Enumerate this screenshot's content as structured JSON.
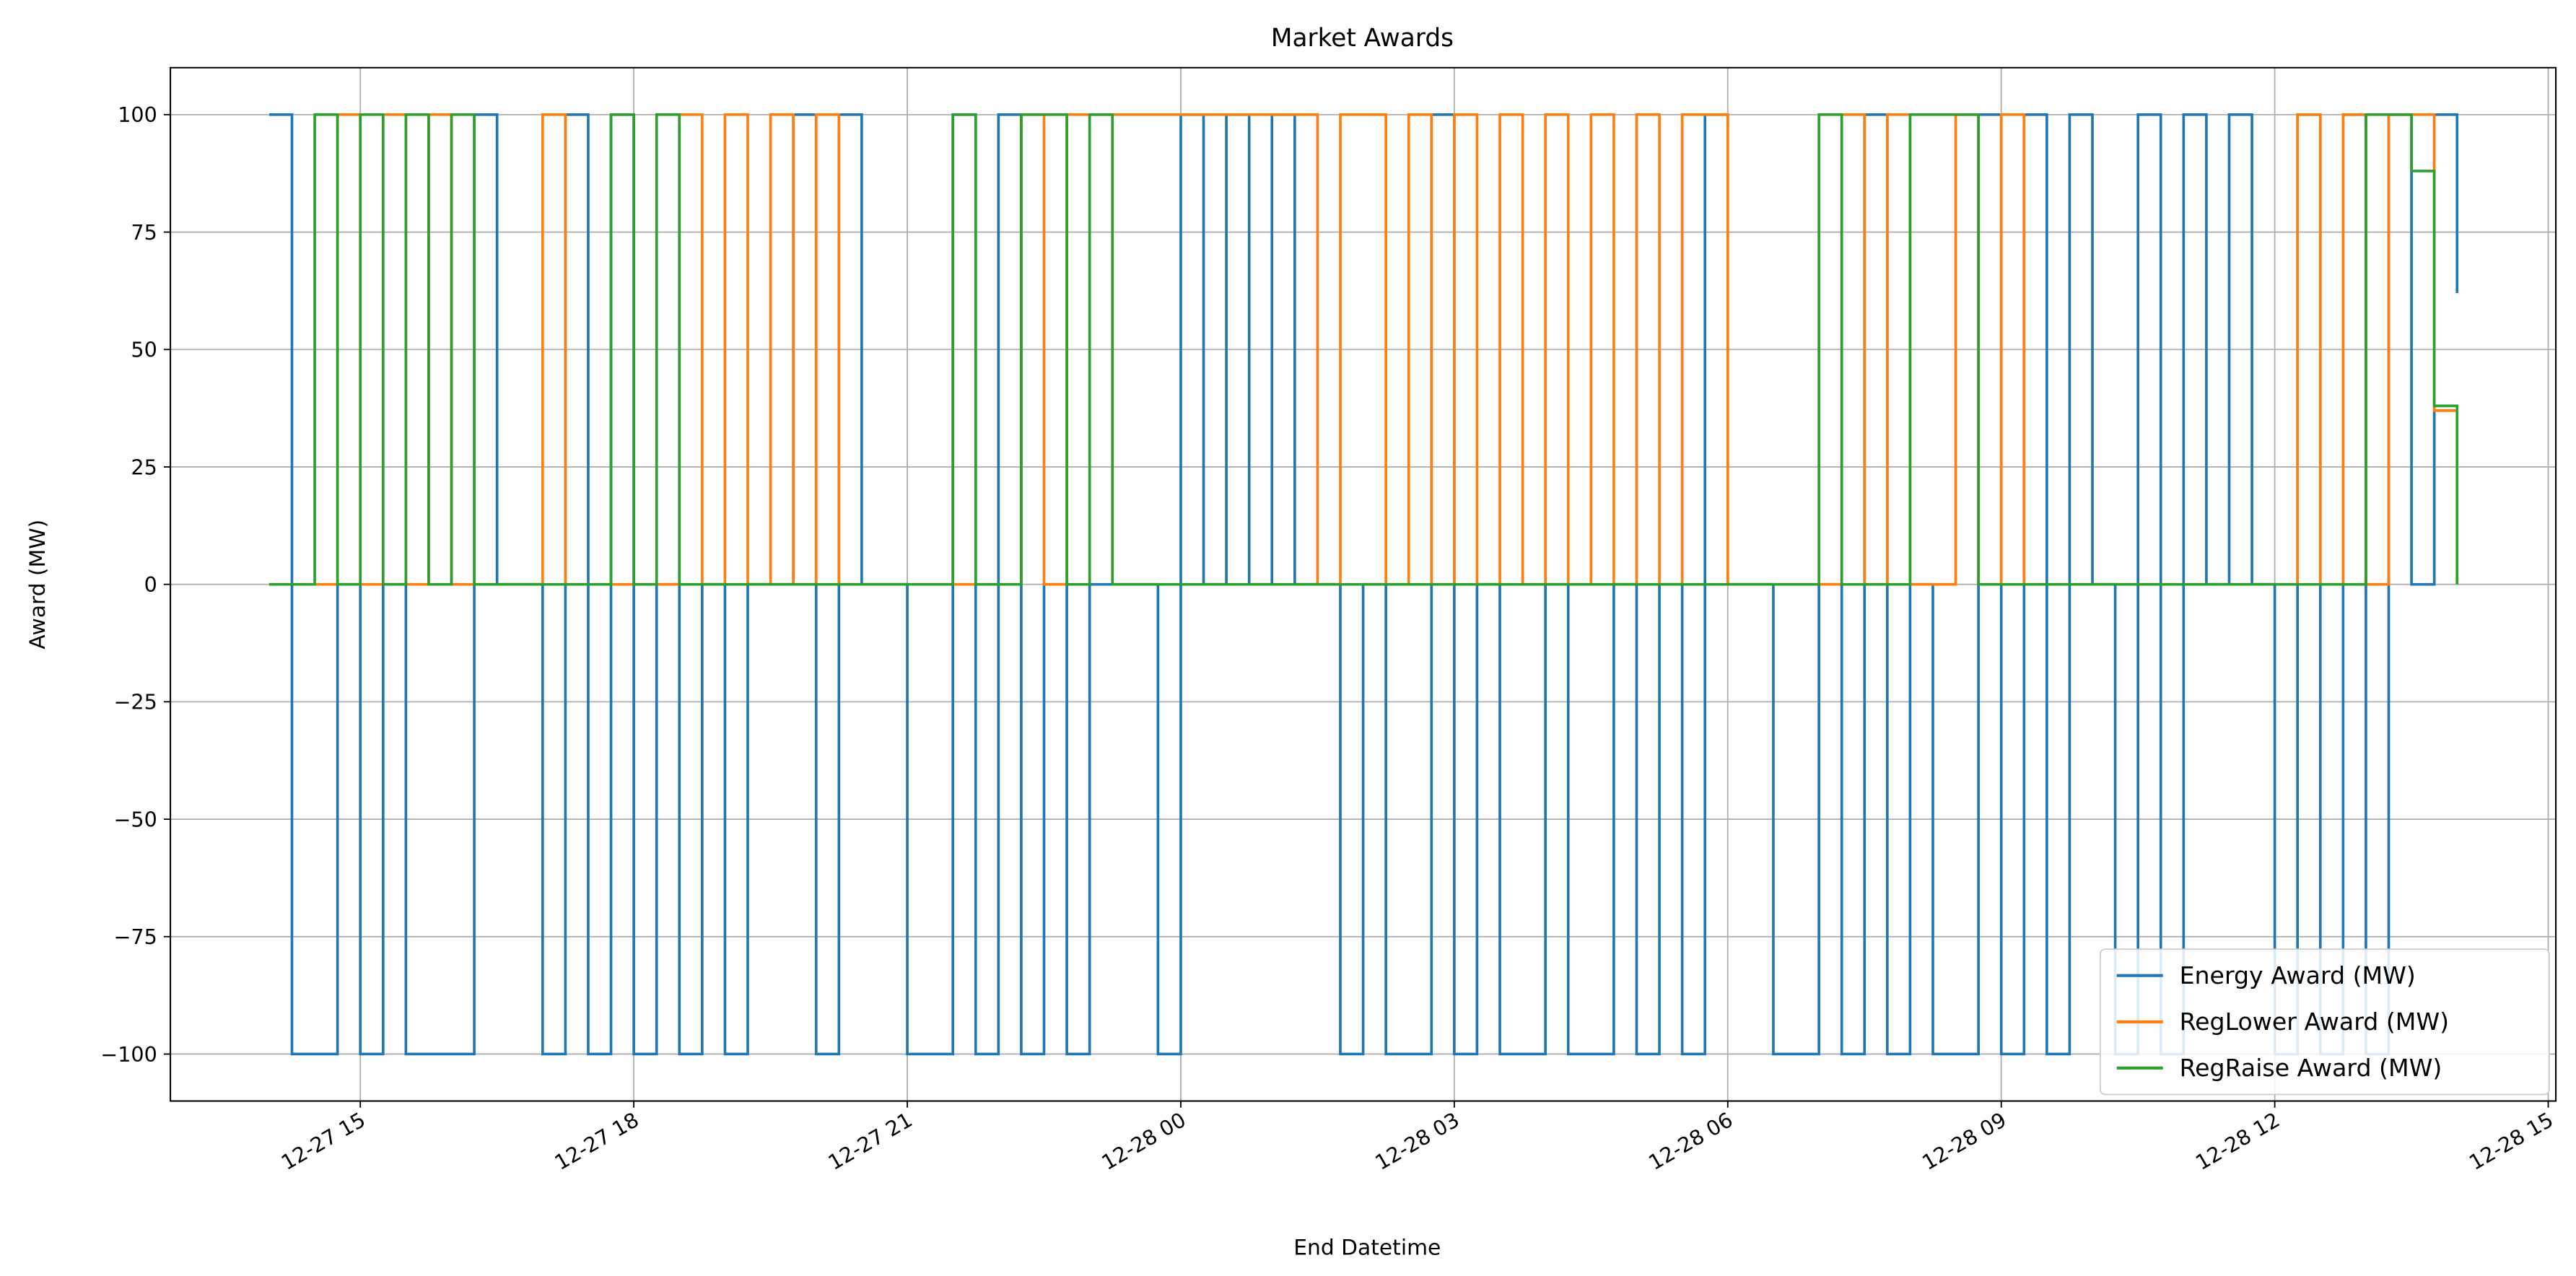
{
  "chart_data": {
    "type": "step",
    "title": "Market Awards",
    "x_label": "End Datetime",
    "y_label": "Award (MW)",
    "x": [
      "12-27 14:00",
      "12-27 14:15",
      "12-27 14:30",
      "12-27 14:45",
      "12-27 15:00",
      "12-27 15:15",
      "12-27 15:30",
      "12-27 15:45",
      "12-27 16:00",
      "12-27 16:15",
      "12-27 16:30",
      "12-27 16:45",
      "12-27 17:00",
      "12-27 17:15",
      "12-27 17:30",
      "12-27 17:45",
      "12-27 18:00",
      "12-27 18:15",
      "12-27 18:30",
      "12-27 18:45",
      "12-27 19:00",
      "12-27 19:15",
      "12-27 19:30",
      "12-27 19:45",
      "12-27 20:00",
      "12-27 20:15",
      "12-27 20:30",
      "12-27 20:45",
      "12-27 21:00",
      "12-27 21:15",
      "12-27 21:30",
      "12-27 21:45",
      "12-27 22:00",
      "12-27 22:15",
      "12-27 22:30",
      "12-27 22:45",
      "12-27 23:00",
      "12-27 23:15",
      "12-27 23:30",
      "12-27 23:45",
      "12-28 00:00",
      "12-28 00:15",
      "12-28 00:30",
      "12-28 00:45",
      "12-28 01:00",
      "12-28 01:15",
      "12-28 01:30",
      "12-28 01:45",
      "12-28 02:00",
      "12-28 02:15",
      "12-28 02:30",
      "12-28 02:45",
      "12-28 03:00",
      "12-28 03:15",
      "12-28 03:30",
      "12-28 03:45",
      "12-28 04:00",
      "12-28 04:15",
      "12-28 04:30",
      "12-28 04:45",
      "12-28 05:00",
      "12-28 05:15",
      "12-28 05:30",
      "12-28 05:45",
      "12-28 06:00",
      "12-28 06:15",
      "12-28 06:30",
      "12-28 06:45",
      "12-28 07:00",
      "12-28 07:15",
      "12-28 07:30",
      "12-28 07:45",
      "12-28 08:00",
      "12-28 08:15",
      "12-28 08:30",
      "12-28 08:45",
      "12-28 09:00",
      "12-28 09:15",
      "12-28 09:30",
      "12-28 09:45",
      "12-28 10:00",
      "12-28 10:15",
      "12-28 10:30",
      "12-28 10:45",
      "12-28 11:00",
      "12-28 11:15",
      "12-28 11:30",
      "12-28 11:45",
      "12-28 12:00",
      "12-28 12:15",
      "12-28 12:30",
      "12-28 12:45",
      "12-28 13:00",
      "12-28 13:15",
      "12-28 13:30",
      "12-28 13:45",
      "12-28 14:00"
    ],
    "series": [
      {
        "name": "Energy Award (MW)",
        "color": "#1f77b4",
        "values": [
          100,
          -100,
          -100,
          0,
          -100,
          0,
          -100,
          -100,
          -100,
          100,
          0,
          0,
          -100,
          100,
          -100,
          100,
          -100,
          0,
          -100,
          0,
          -100,
          0,
          0,
          100,
          -100,
          100,
          0,
          0,
          -100,
          -100,
          100,
          -100,
          100,
          -100,
          0,
          -100,
          0,
          0,
          0,
          -100,
          100,
          0,
          100,
          0,
          100,
          0,
          0,
          -100,
          0,
          -100,
          -100,
          100,
          -100,
          0,
          -100,
          -100,
          0,
          -100,
          -100,
          0,
          -100,
          0,
          -100,
          100,
          0,
          0,
          -100,
          -100,
          0,
          -100,
          100,
          -100,
          0,
          -100,
          -100,
          100,
          -100,
          100,
          -100,
          100,
          0,
          -100,
          100,
          -100,
          100,
          0,
          100,
          0,
          -100,
          100,
          -100,
          100,
          -100,
          100,
          0,
          100,
          62
        ]
      },
      {
        "name": "RegLower Award (MW)",
        "color": "#ff7f0e",
        "values": [
          0,
          0,
          0,
          100,
          0,
          100,
          0,
          100,
          0,
          0,
          0,
          0,
          100,
          0,
          0,
          0,
          0,
          0,
          100,
          0,
          100,
          0,
          100,
          0,
          100,
          0,
          0,
          0,
          0,
          0,
          0,
          0,
          0,
          100,
          0,
          100,
          100,
          100,
          100,
          100,
          100,
          100,
          100,
          100,
          100,
          100,
          0,
          100,
          100,
          0,
          100,
          0,
          100,
          0,
          100,
          0,
          100,
          0,
          100,
          0,
          100,
          0,
          100,
          100,
          0,
          0,
          0,
          0,
          0,
          100,
          0,
          100,
          0,
          0,
          100,
          0,
          100,
          0,
          0,
          0,
          0,
          0,
          0,
          0,
          0,
          0,
          0,
          0,
          0,
          100,
          0,
          100,
          0,
          100,
          100,
          37,
          0
        ]
      },
      {
        "name": "RegRaise Award (MW)",
        "color": "#2ca02c",
        "values": [
          0,
          0,
          100,
          0,
          100,
          0,
          100,
          0,
          100,
          0,
          0,
          0,
          0,
          0,
          0,
          100,
          0,
          100,
          0,
          0,
          0,
          0,
          0,
          0,
          0,
          0,
          0,
          0,
          0,
          0,
          100,
          0,
          0,
          100,
          100,
          0,
          100,
          0,
          0,
          0,
          0,
          0,
          0,
          0,
          0,
          0,
          0,
          0,
          0,
          0,
          0,
          0,
          0,
          0,
          0,
          0,
          0,
          0,
          0,
          0,
          0,
          0,
          0,
          0,
          0,
          0,
          0,
          0,
          100,
          0,
          0,
          0,
          100,
          100,
          100,
          0,
          0,
          0,
          0,
          0,
          0,
          0,
          0,
          0,
          0,
          0,
          0,
          0,
          0,
          0,
          0,
          0,
          100,
          100,
          88,
          38,
          0
        ]
      }
    ],
    "xlim": [
      "12-27 12:55",
      "12-28 15:05"
    ],
    "xticks": [
      {
        "value": "12-27 15:00",
        "label": "12-27 15"
      },
      {
        "value": "12-27 18:00",
        "label": "12-27 18"
      },
      {
        "value": "12-27 21:00",
        "label": "12-27 21"
      },
      {
        "value": "12-28 00:00",
        "label": "12-28 00"
      },
      {
        "value": "12-28 03:00",
        "label": "12-28 03"
      },
      {
        "value": "12-28 06:00",
        "label": "12-28 06"
      },
      {
        "value": "12-28 09:00",
        "label": "12-28 09"
      },
      {
        "value": "12-28 12:00",
        "label": "12-28 12"
      },
      {
        "value": "12-28 15:00",
        "label": "12-28 15"
      }
    ],
    "ylim": [
      -110,
      110
    ],
    "yticks": [
      {
        "value": -100,
        "label": "−100"
      },
      {
        "value": -75,
        "label": "−75"
      },
      {
        "value": -50,
        "label": "−50"
      },
      {
        "value": -25,
        "label": "−25"
      },
      0,
      25,
      50,
      75,
      100
    ],
    "grid": true,
    "legend": "lower right"
  }
}
